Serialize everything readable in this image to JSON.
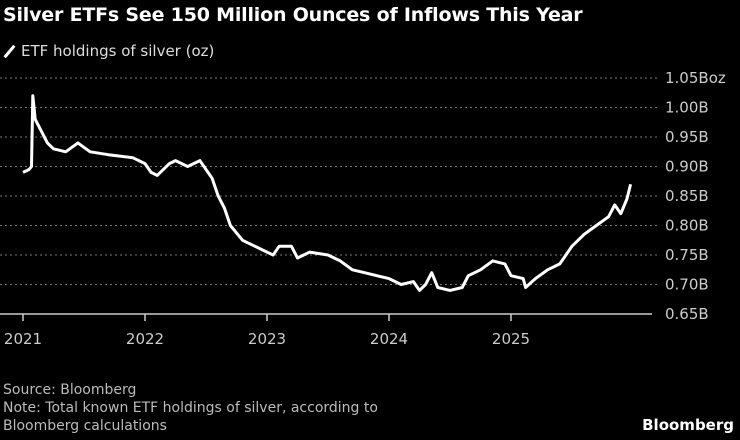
{
  "chart_data": {
    "type": "line",
    "title": "Silver ETFs See 150 Million Ounces of Inflows This Year",
    "series": [
      {
        "name": "ETF holdings of silver (oz)",
        "color": "#ffffff",
        "x": [
          2021.0,
          2021.05,
          2021.07,
          2021.08,
          2021.1,
          2021.15,
          2021.2,
          2021.25,
          2021.35,
          2021.45,
          2021.55,
          2021.7,
          2021.9,
          2022.0,
          2022.05,
          2022.1,
          2022.2,
          2022.25,
          2022.35,
          2022.45,
          2022.55,
          2022.6,
          2022.65,
          2022.7,
          2022.8,
          2022.9,
          2023.0,
          2023.05,
          2023.1,
          2023.2,
          2023.25,
          2023.35,
          2023.5,
          2023.6,
          2023.7,
          2023.8,
          2023.9,
          2024.0,
          2024.1,
          2024.2,
          2024.25,
          2024.3,
          2024.35,
          2024.4,
          2024.5,
          2024.6,
          2024.65,
          2024.75,
          2024.85,
          2024.95,
          2025.0,
          2025.1,
          2025.12,
          2025.2,
          2025.3,
          2025.4,
          2025.5,
          2025.6,
          2025.7,
          2025.8,
          2025.85,
          2025.9,
          2025.95,
          2025.98
        ],
        "values": [
          0.89,
          0.895,
          0.9,
          1.02,
          0.98,
          0.96,
          0.94,
          0.93,
          0.925,
          0.94,
          0.925,
          0.92,
          0.915,
          0.905,
          0.89,
          0.885,
          0.905,
          0.91,
          0.9,
          0.91,
          0.88,
          0.85,
          0.83,
          0.8,
          0.775,
          0.765,
          0.755,
          0.75,
          0.765,
          0.765,
          0.745,
          0.755,
          0.75,
          0.74,
          0.725,
          0.72,
          0.715,
          0.71,
          0.7,
          0.705,
          0.69,
          0.7,
          0.72,
          0.695,
          0.69,
          0.695,
          0.715,
          0.725,
          0.74,
          0.735,
          0.715,
          0.71,
          0.695,
          0.71,
          0.725,
          0.735,
          0.765,
          0.785,
          0.8,
          0.815,
          0.835,
          0.82,
          0.845,
          0.87
        ]
      }
    ],
    "xticks": [
      "2021",
      "2022",
      "2023",
      "2024",
      "2025"
    ],
    "yticks": [
      "0.65B",
      "0.70B",
      "0.75B",
      "0.80B",
      "0.85B",
      "0.90B",
      "0.95B",
      "1.00B",
      "1.05Boz"
    ],
    "ylim": [
      0.65,
      1.05
    ],
    "xlim": [
      2020.98,
      2026.1
    ],
    "grid": true,
    "legend": "top-left"
  },
  "footer": {
    "source": "Source: Bloomberg",
    "note_line1": "Note: Total known ETF holdings of silver, according to",
    "note_line2": "Bloomberg calculations",
    "logo": "Bloomberg"
  }
}
